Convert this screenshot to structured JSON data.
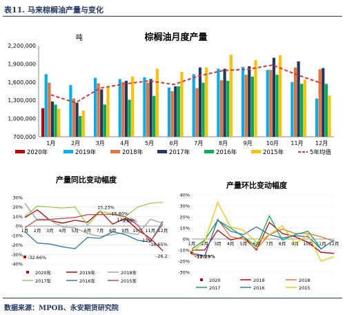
{
  "header": {
    "caption": "表11.  马来棕榈油产量与变化"
  },
  "footer": {
    "source": "数据来源：MPOB、永安期货研究院"
  },
  "chart_data": [
    {
      "type": "bar",
      "title": "棕榈油月度产量",
      "unit_label": "吨",
      "categories": [
        "1月",
        "2月",
        "3月",
        "4月",
        "5月",
        "6月",
        "7月",
        "8月",
        "9月",
        "10月",
        "11月",
        "12月"
      ],
      "ylim": [
        700000,
        2200000
      ],
      "yticks": [
        "700,000",
        "1,000,000",
        "1,300,000",
        "1,600,000",
        "1,900,000",
        "2,200,000"
      ],
      "series": [
        {
          "name": "2020年",
          "color": "#c00000",
          "values": [
            1170000,
            null,
            null,
            null,
            null,
            null,
            null,
            null,
            null,
            null,
            null,
            null
          ]
        },
        {
          "name": "2019年",
          "color": "#00b0f0",
          "values": [
            1730000,
            1550000,
            1670000,
            1650000,
            1680000,
            1510000,
            1730000,
            1820000,
            1850000,
            1800000,
            1600000,
            1330000
          ]
        },
        {
          "name": "2018年",
          "color": "#e97132",
          "values": [
            1590000,
            1330000,
            1580000,
            1600000,
            1590000,
            1450000,
            1500000,
            1630000,
            1720000,
            1800000,
            1840000,
            1810000
          ]
        },
        {
          "name": "2017年",
          "color": "#1f3864",
          "values": [
            1280000,
            1260000,
            1480000,
            1620000,
            1650000,
            1530000,
            1840000,
            1820000,
            1860000,
            2000000,
            1940000,
            1830000
          ]
        },
        {
          "name": "2016年",
          "color": "#00b050",
          "values": [
            1230000,
            1040000,
            1230000,
            1310000,
            1370000,
            1530000,
            1590000,
            1620000,
            1690000,
            1720000,
            1570000,
            1570000
          ]
        },
        {
          "name": "2015年",
          "color": "#ffc000",
          "values": [
            1160000,
            1130000,
            1530000,
            1690000,
            1820000,
            1770000,
            1840000,
            2050000,
            1960000,
            2040000,
            1640000,
            1380000
          ]
        }
      ],
      "avg_line": {
        "name": "5年均值",
        "color": "#e03030",
        "values": [
          1390000,
          1260000,
          1500000,
          1570000,
          1620000,
          1560000,
          1700000,
          1790000,
          1810000,
          1880000,
          1720000,
          1580000
        ]
      }
    },
    {
      "type": "line",
      "title": "产量同比变动幅度",
      "categories": [
        "1月",
        "2月",
        "3月",
        "4月",
        "5月",
        "6月",
        "7月",
        "8月",
        "9月",
        "10月",
        "11月",
        "12月"
      ],
      "ylim": [
        -40,
        30
      ],
      "yticks": [
        "-40%",
        "-30%",
        "-20%",
        "-10%",
        "0%",
        "10%",
        "20%",
        "30%"
      ],
      "series": [
        {
          "name": "2020年",
          "color": "#c00000",
          "marker": true,
          "values": [
            -32.66,
            null,
            null,
            null,
            null,
            null,
            null,
            null,
            null,
            null,
            null,
            null
          ]
        },
        {
          "name": "2019年",
          "color": "#c00000",
          "values": [
            9,
            17,
            6,
            3,
            6,
            4,
            15.8,
            2,
            8,
            -4,
            -13,
            -26.22
          ]
        },
        {
          "name": "2018年",
          "color": "#a0a0a0",
          "values": [
            24,
            6,
            6,
            -1,
            -2,
            -8,
            -11,
            -9,
            -7,
            -9,
            7,
            3
          ]
        },
        {
          "name": "2017年",
          "color": "#92d050",
          "values": [
            10,
            21,
            20,
            19,
            20,
            1,
            15.23,
            13,
            10,
            20,
            24,
            25
          ]
        },
        {
          "name": "2016年",
          "color": "#2e75b6",
          "values": [
            -6,
            -18,
            -19,
            -22,
            -24,
            -12,
            -13,
            -6,
            -9,
            -15,
            -17,
            5
          ]
        },
        {
          "name": "2015年",
          "color": "#c0504d",
          "values": [
            -2,
            7,
            7,
            8,
            9,
            12,
            12,
            12.4,
            9.6,
            1,
            -16.65,
            2
          ]
        }
      ],
      "annotations": [
        "15.23%",
        "15.80%",
        "12.40%",
        "9.60%",
        "-16.65%",
        "-26.22%",
        "-32.66%",
        "-13%"
      ]
    },
    {
      "type": "line",
      "title": "产量环比变动幅度",
      "categories": [
        "1月",
        "2月",
        "3月",
        "4月",
        "5月",
        "6月",
        "7月",
        "8月",
        "9月",
        "10月",
        "11月",
        "12月"
      ],
      "ylim": [
        -30,
        40
      ],
      "yticks": [
        "-30%",
        "-20%",
        "-10%",
        "0%",
        "10%",
        "20%",
        "30%",
        "40%"
      ],
      "series": [
        {
          "name": "2020",
          "color": "#c00000",
          "marker": true,
          "values": [
            -12.29,
            null,
            null,
            null,
            null,
            null,
            null,
            null,
            null,
            null,
            null,
            null
          ]
        },
        {
          "name": "2019",
          "color": "#c00000",
          "values": [
            -10,
            -10,
            8,
            -1,
            2,
            -10,
            15,
            5,
            2,
            -3,
            -12,
            -13
          ]
        },
        {
          "name": "2018",
          "color": "#e97132",
          "values": [
            -14,
            -16,
            18,
            2,
            0,
            -9,
            4,
            9,
            5,
            5,
            2,
            -2
          ]
        },
        {
          "name": "2017",
          "color": "#00b050",
          "values": [
            -9,
            -1,
            17,
            10,
            2,
            -7,
            21,
            -1,
            4,
            7,
            -9,
            -1
          ]
        },
        {
          "name": "2016",
          "color": "#2e75b6",
          "values": [
            -13,
            -15,
            17,
            7,
            4,
            11,
            4,
            1,
            3,
            2,
            -9,
            -1
          ]
        },
        {
          "name": "2015",
          "color": "#ffc000",
          "values": [
            -12,
            -2,
            33,
            11,
            8,
            -3,
            4,
            12,
            -4,
            4,
            -20,
            -16
          ]
        }
      ],
      "annotations": [
        "-12.29%"
      ]
    }
  ]
}
